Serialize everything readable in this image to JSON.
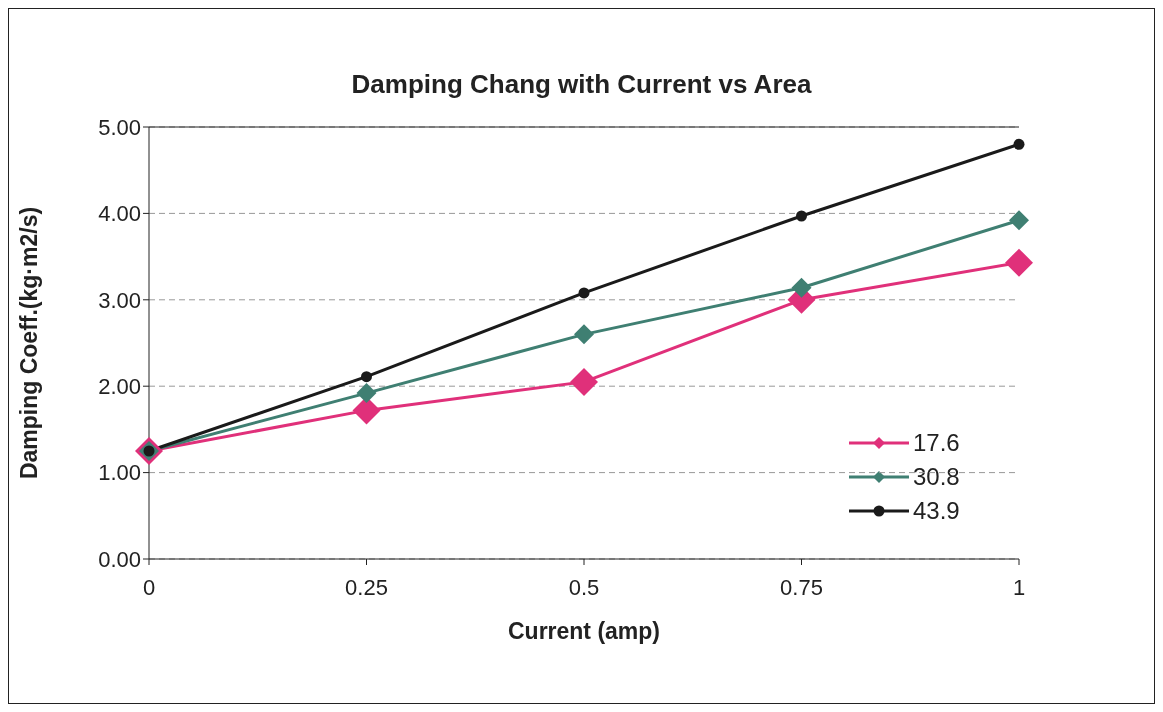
{
  "chart_data": {
    "type": "line",
    "title": "Damping Chang with Current vs Area",
    "xlabel": "Current (amp)",
    "ylabel": "Damping Coeff.(kg·m2/s)",
    "categories": [
      "0",
      "0.25",
      "0.5",
      "0.75",
      "1"
    ],
    "series": [
      {
        "name": "17.6",
        "color": "#e0307a",
        "marker": "diamond",
        "values": [
          1.25,
          1.72,
          2.05,
          3.0,
          3.43
        ]
      },
      {
        "name": "30.8",
        "color": "#3f7f72",
        "marker": "diamond",
        "values": [
          1.25,
          1.92,
          2.6,
          3.14,
          3.92
        ]
      },
      {
        "name": "43.9",
        "color": "#1a1a1a",
        "marker": "circle",
        "values": [
          1.25,
          2.11,
          3.08,
          3.97,
          4.8
        ]
      }
    ],
    "ylim": [
      0,
      5
    ],
    "yticks": [
      {
        "value": 0,
        "label": "0.00"
      },
      {
        "value": 1,
        "label": "1.00"
      },
      {
        "value": 2,
        "label": "2.00"
      },
      {
        "value": 3,
        "label": "3.00"
      },
      {
        "value": 4,
        "label": "4.00"
      },
      {
        "value": 5,
        "label": "5.00"
      }
    ],
    "grid": "y",
    "legend": "bottom right",
    "line_style": "solid"
  }
}
